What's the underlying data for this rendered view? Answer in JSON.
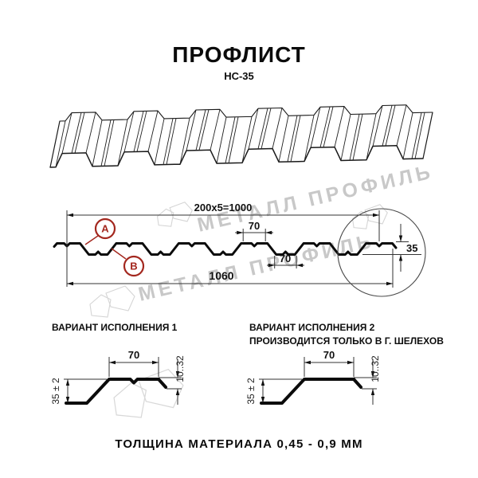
{
  "title": "ПРОФЛИСТ",
  "subtitle": "НС-35",
  "watermark": {
    "text": "МЕТАЛЛ ПРОФИЛЬ"
  },
  "cross_section": {
    "dim_total_top": "200x5=1000",
    "dim_flange_top": "70",
    "dim_flange_bottom": "70",
    "dim_overall_width": "1060",
    "dim_height": "35",
    "label_a": "А",
    "label_b": "В"
  },
  "variant1": {
    "label": "ВАРИАНТ ИСПОЛНЕНИЯ 1",
    "dim_top_flange": "70",
    "dim_lip": "10..32",
    "dim_height": "35 ± 2"
  },
  "variant2": {
    "label_line1": "ВАРИАНТ ИСПОЛНЕНИЯ 2",
    "label_line2": "ПРОИЗВОДИТСЯ ТОЛЬКО В Г. ШЕЛЕХОВ",
    "dim_top_flange": "70",
    "dim_lip": "10..32",
    "dim_height": "35 ± 2"
  },
  "footer": "ТОЛЩИНА МАТЕРИАЛА 0,45 - 0,9 ММ",
  "colors": {
    "line": "#1a1a1a",
    "accent_red": "#A3271E",
    "watermark_gray": "#c8c8c8"
  }
}
